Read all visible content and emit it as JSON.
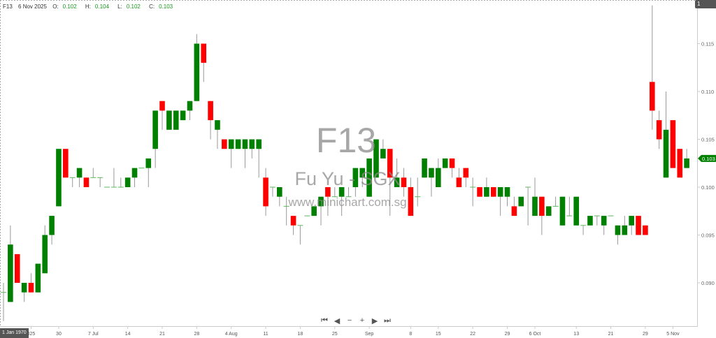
{
  "header": {
    "symbol": "F13",
    "date": "6 Nov 2025",
    "o_label": "O:",
    "o": "0.102",
    "h_label": "H:",
    "h": "0.104",
    "l_label": "L:",
    "l": "0.102",
    "c_label": "C:",
    "c": "0.103"
  },
  "watermark": {
    "code": "F13",
    "name": "Fu Yu - SGX",
    "site": "www.minichart.com.sg"
  },
  "badge": "1",
  "crosshair_x_label": "1 Jan 1970",
  "nav": {
    "first": "⏮",
    "prev": "◀",
    "zoom_out": "−",
    "zoom_in": "+",
    "next": "▶",
    "last": "⏭"
  },
  "colors": {
    "up": "#008000",
    "down": "#ff0000",
    "wick": "#999999",
    "last_price": "#008000"
  },
  "chart_data": {
    "type": "candlestick",
    "ylim": [
      0.0855,
      0.1195
    ],
    "yticks": [
      "0.090",
      "0.095",
      "0.100",
      "0.105",
      "0.110",
      "0.115"
    ],
    "last_price": "0.103",
    "xticks": [
      {
        "label": "025",
        "index": 4
      },
      {
        "label": "30",
        "index": 8
      },
      {
        "label": "7 Jul",
        "index": 13
      },
      {
        "label": "14",
        "index": 18
      },
      {
        "label": "21",
        "index": 23
      },
      {
        "label": "28",
        "index": 28
      },
      {
        "label": "4 Aug",
        "index": 33
      },
      {
        "label": "11",
        "index": 38
      },
      {
        "label": "18",
        "index": 43
      },
      {
        "label": "25",
        "index": 48
      },
      {
        "label": "Sep",
        "index": 53
      },
      {
        "label": "8",
        "index": 59
      },
      {
        "label": "15",
        "index": 63
      },
      {
        "label": "22",
        "index": 68
      },
      {
        "label": "29",
        "index": 73
      },
      {
        "label": "6 Oct",
        "index": 77
      },
      {
        "label": "13",
        "index": 83
      },
      {
        "label": "21",
        "index": 88
      },
      {
        "label": "29",
        "index": 93
      },
      {
        "label": "5 Nov",
        "index": 97
      }
    ],
    "ohlc": [
      [
        0.089,
        0.09,
        0.086,
        0.089
      ],
      [
        0.088,
        0.096,
        0.088,
        0.094
      ],
      [
        0.093,
        0.093,
        0.09,
        0.09
      ],
      [
        0.089,
        0.09,
        0.088,
        0.09
      ],
      [
        0.09,
        0.091,
        0.089,
        0.089
      ],
      [
        0.089,
        0.092,
        0.089,
        0.092
      ],
      [
        0.091,
        0.096,
        0.091,
        0.095
      ],
      [
        0.095,
        0.097,
        0.094,
        0.097
      ],
      [
        0.098,
        0.104,
        0.098,
        0.104
      ],
      [
        0.104,
        0.104,
        0.101,
        0.101
      ],
      [
        0.101,
        0.101,
        0.1,
        0.101
      ],
      [
        0.101,
        0.102,
        0.1,
        0.102
      ],
      [
        0.101,
        0.101,
        0.1,
        0.1
      ],
      [
        0.101,
        0.102,
        0.101,
        0.101
      ],
      [
        0.101,
        0.101,
        0.1,
        0.101
      ],
      [
        0.1,
        0.1,
        0.1,
        0.1
      ],
      [
        0.1,
        0.102,
        0.1,
        0.1
      ],
      [
        0.1,
        0.101,
        0.1,
        0.1
      ],
      [
        0.1,
        0.101,
        0.1,
        0.101
      ],
      [
        0.101,
        0.102,
        0.1,
        0.102
      ],
      [
        0.102,
        0.102,
        0.102,
        0.102
      ],
      [
        0.102,
        0.103,
        0.1,
        0.103
      ],
      [
        0.104,
        0.108,
        0.102,
        0.108
      ],
      [
        0.109,
        0.109,
        0.106,
        0.108
      ],
      [
        0.106,
        0.108,
        0.106,
        0.108
      ],
      [
        0.106,
        0.108,
        0.106,
        0.108
      ],
      [
        0.107,
        0.108,
        0.107,
        0.108
      ],
      [
        0.108,
        0.109,
        0.107,
        0.109
      ],
      [
        0.109,
        0.116,
        0.109,
        0.115
      ],
      [
        0.115,
        0.115,
        0.111,
        0.113
      ],
      [
        0.109,
        0.109,
        0.105,
        0.107
      ],
      [
        0.106,
        0.107,
        0.104,
        0.107
      ],
      [
        0.105,
        0.105,
        0.104,
        0.104
      ],
      [
        0.104,
        0.105,
        0.102,
        0.105
      ],
      [
        0.104,
        0.105,
        0.104,
        0.105
      ],
      [
        0.104,
        0.105,
        0.102,
        0.105
      ],
      [
        0.104,
        0.105,
        0.103,
        0.105
      ],
      [
        0.104,
        0.105,
        0.101,
        0.105
      ],
      [
        0.101,
        0.102,
        0.097,
        0.098
      ],
      [
        0.1,
        0.1,
        0.099,
        0.1
      ],
      [
        0.099,
        0.1,
        0.098,
        0.1
      ],
      [
        0.098,
        0.099,
        0.096,
        0.098
      ],
      [
        0.097,
        0.097,
        0.095,
        0.096
      ],
      [
        0.096,
        0.096,
        0.094,
        0.096
      ],
      [
        0.097,
        0.097,
        0.097,
        0.097
      ],
      [
        0.097,
        0.098,
        0.097,
        0.098
      ],
      [
        0.098,
        0.099,
        0.096,
        0.099
      ],
      [
        0.1,
        0.1,
        0.097,
        0.099
      ],
      [
        0.099,
        0.1,
        0.099,
        0.099
      ],
      [
        0.099,
        0.1,
        0.097,
        0.1
      ],
      [
        0.099,
        0.1,
        0.099,
        0.099
      ],
      [
        0.1,
        0.102,
        0.099,
        0.102
      ],
      [
        0.101,
        0.102,
        0.1,
        0.102
      ],
      [
        0.099,
        0.103,
        0.099,
        0.103
      ],
      [
        0.101,
        0.105,
        0.101,
        0.105
      ],
      [
        0.103,
        0.105,
        0.103,
        0.104
      ],
      [
        0.104,
        0.104,
        0.097,
        0.101
      ],
      [
        0.1,
        0.103,
        0.1,
        0.101
      ],
      [
        0.101,
        0.102,
        0.099,
        0.1
      ],
      [
        0.1,
        0.101,
        0.097,
        0.097
      ],
      [
        0.099,
        0.101,
        0.098,
        0.099
      ],
      [
        0.101,
        0.103,
        0.101,
        0.103
      ],
      [
        0.101,
        0.102,
        0.099,
        0.102
      ],
      [
        0.1,
        0.103,
        0.1,
        0.102
      ],
      [
        0.102,
        0.103,
        0.102,
        0.103
      ],
      [
        0.103,
        0.103,
        0.101,
        0.102
      ],
      [
        0.101,
        0.102,
        0.1,
        0.1
      ],
      [
        0.102,
        0.102,
        0.1,
        0.101
      ],
      [
        0.1,
        0.101,
        0.098,
        0.1
      ],
      [
        0.1,
        0.1,
        0.099,
        0.099
      ],
      [
        0.099,
        0.101,
        0.099,
        0.1
      ],
      [
        0.1,
        0.1,
        0.099,
        0.099
      ],
      [
        0.099,
        0.1,
        0.097,
        0.1
      ],
      [
        0.099,
        0.1,
        0.098,
        0.1
      ],
      [
        0.098,
        0.099,
        0.097,
        0.097
      ],
      [
        0.098,
        0.099,
        0.098,
        0.099
      ],
      [
        0.1,
        0.1,
        0.096,
        0.1
      ],
      [
        0.097,
        0.101,
        0.097,
        0.099
      ],
      [
        0.099,
        0.099,
        0.095,
        0.097
      ],
      [
        0.097,
        0.098,
        0.097,
        0.098
      ],
      [
        0.098,
        0.099,
        0.098,
        0.098
      ],
      [
        0.096,
        0.099,
        0.096,
        0.099
      ],
      [
        0.097,
        0.099,
        0.097,
        0.097
      ],
      [
        0.096,
        0.099,
        0.096,
        0.099
      ],
      [
        0.096,
        0.096,
        0.095,
        0.096
      ],
      [
        0.096,
        0.097,
        0.096,
        0.097
      ],
      [
        0.097,
        0.097,
        0.096,
        0.097
      ],
      [
        0.096,
        0.097,
        0.095,
        0.097
      ],
      [
        0.097,
        0.097,
        0.097,
        0.097
      ],
      [
        0.095,
        0.096,
        0.094,
        0.096
      ],
      [
        0.095,
        0.097,
        0.095,
        0.096
      ],
      [
        0.096,
        0.097,
        0.095,
        0.097
      ],
      [
        0.097,
        0.097,
        0.095,
        0.095
      ],
      [
        0.096,
        0.096,
        0.095,
        0.095
      ],
      [
        0.111,
        0.119,
        0.106,
        0.108
      ],
      [
        0.107,
        0.108,
        0.104,
        0.105
      ],
      [
        0.101,
        0.11,
        0.101,
        0.106
      ],
      [
        0.107,
        0.107,
        0.102,
        0.102
      ],
      [
        0.104,
        0.104,
        0.101,
        0.101
      ],
      [
        0.102,
        0.104,
        0.102,
        0.103
      ]
    ]
  }
}
